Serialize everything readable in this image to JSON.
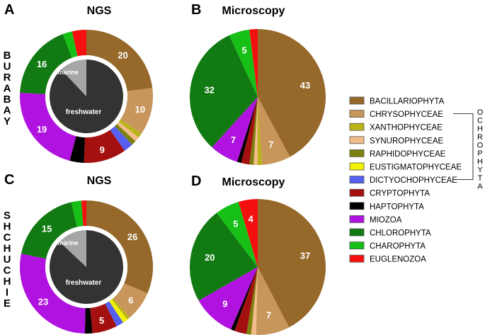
{
  "panels": [
    {
      "letter": "A",
      "title": "NGS",
      "site": "BURABAY"
    },
    {
      "letter": "B",
      "title": "Microscopy"
    },
    {
      "letter": "C",
      "title": "NGS",
      "site": "SHCHUCHIE"
    },
    {
      "letter": "D",
      "title": "Microscopy"
    }
  ],
  "legend": {
    "items": [
      {
        "label": "BACILLARIOPHYTA",
        "color": "#96682a"
      },
      {
        "label": "CHRYSOPHYCEAE",
        "color": "#c8955a"
      },
      {
        "label": "XANTHOPHYCEAE",
        "color": "#b8b418"
      },
      {
        "label": "SYNUROPHYCEAE",
        "color": "#f2bc8a"
      },
      {
        "label": "RAPHIDOPHYCEAE",
        "color": "#7c800c"
      },
      {
        "label": "EUSTIGMATOPHYCEAE",
        "color": "#f2f200"
      },
      {
        "label": "DICTYOCHOPHYCEAE",
        "color": "#5560f0"
      },
      {
        "label": "CRYPTOPHYTA",
        "color": "#a40f0f"
      },
      {
        "label": "HAPTOPHYTA",
        "color": "#000000"
      },
      {
        "label": "MIOZOA",
        "color": "#b012e0"
      },
      {
        "label": "CHLOROPHYTA",
        "color": "#127a12"
      },
      {
        "label": "CHAROPHYTA",
        "color": "#16c016"
      },
      {
        "label": "EUGLENOZOA",
        "color": "#f51010"
      }
    ],
    "group_label": "OCHROPHYTA"
  },
  "chart_data": [
    {
      "type": "pie",
      "panel": "A",
      "title": "NGS",
      "style": "donut",
      "categories": [
        "BACILLARIOPHYTA",
        "CHRYSOPHYCEAE",
        "XANTHOPHYCEAE",
        "SYNUROPHYCEAE",
        "RAPHIDOPHYCEAE",
        "EUSTIGMATOPHYCEAE",
        "DICTYOCHOPHYCEAE",
        "CRYPTOPHYTA",
        "HAPTOPHYTA",
        "MIOZOA",
        "CHLOROPHYTA",
        "CHAROPHYTA",
        "EUGLENOZOA"
      ],
      "values": [
        20,
        10,
        1,
        1,
        1,
        0,
        2,
        9,
        3,
        19,
        16,
        2,
        3
      ],
      "data_labels": [
        "20",
        "10",
        "",
        "",
        "",
        "",
        "",
        "9",
        "",
        "19",
        "16",
        "",
        ""
      ],
      "inner": {
        "categories": [
          "freshwater",
          "marine"
        ],
        "values": [
          88,
          12
        ],
        "colors": [
          "#333333",
          "#a6a6a6"
        ]
      }
    },
    {
      "type": "pie",
      "panel": "B",
      "title": "Microscopy",
      "categories": [
        "BACILLARIOPHYTA",
        "CHRYSOPHYCEAE",
        "XANTHOPHYCEAE",
        "SYNUROPHYCEAE",
        "RAPHIDOPHYCEAE",
        "EUSTIGMATOPHYCEAE",
        "DICTYOCHOPHYCEAE",
        "CRYPTOPHYTA",
        "HAPTOPHYTA",
        "MIOZOA",
        "CHLOROPHYTA",
        "CHAROPHYTA",
        "EUGLENOZOA"
      ],
      "values": [
        43,
        7,
        1,
        1,
        1,
        0,
        0,
        2,
        1,
        7,
        32,
        5,
        2
      ],
      "data_labels": [
        "43",
        "7",
        "",
        "",
        "",
        "",
        "",
        "",
        "",
        "7",
        "32",
        "5",
        ""
      ]
    },
    {
      "type": "pie",
      "panel": "C",
      "title": "NGS",
      "style": "donut",
      "categories": [
        "BACILLARIOPHYTA",
        "CHRYSOPHYCEAE",
        "XANTHOPHYCEAE",
        "SYNUROPHYCEAE",
        "RAPHIDOPHYCEAE",
        "EUSTIGMATOPHYCEAE",
        "DICTYOCHOPHYCEAE",
        "CRYPTOPHYTA",
        "HAPTOPHYTA",
        "MIOZOA",
        "CHLOROPHYTA",
        "CHAROPHYTA",
        "EUGLENOZOA"
      ],
      "values": [
        26,
        6,
        0.6,
        0,
        0,
        1,
        1.5,
        5,
        1.5,
        23,
        15,
        2,
        1
      ],
      "data_labels": [
        "26",
        "6",
        "",
        "",
        "",
        "",
        "",
        "5",
        "",
        "23",
        "15",
        "",
        ""
      ],
      "inner": {
        "categories": [
          "freshwater",
          "marine"
        ],
        "values": [
          87,
          13
        ],
        "colors": [
          "#333333",
          "#a6a6a6"
        ]
      }
    },
    {
      "type": "pie",
      "panel": "D",
      "title": "Microscopy",
      "categories": [
        "BACILLARIOPHYTA",
        "CHRYSOPHYCEAE",
        "XANTHOPHYCEAE",
        "SYNUROPHYCEAE",
        "RAPHIDOPHYCEAE",
        "EUSTIGMATOPHYCEAE",
        "DICTYOCHOPHYCEAE",
        "CRYPTOPHYTA",
        "HAPTOPHYTA",
        "MIOZOA",
        "CHLOROPHYTA",
        "CHAROPHYTA",
        "EUGLENOZOA"
      ],
      "values": [
        37,
        7,
        0,
        1,
        1,
        0,
        0,
        2.5,
        0.8,
        9,
        20,
        5,
        4
      ],
      "data_labels": [
        "37",
        "7",
        "",
        "",
        "",
        "",
        "",
        "",
        "",
        "9",
        "20",
        "5",
        "4"
      ]
    }
  ]
}
